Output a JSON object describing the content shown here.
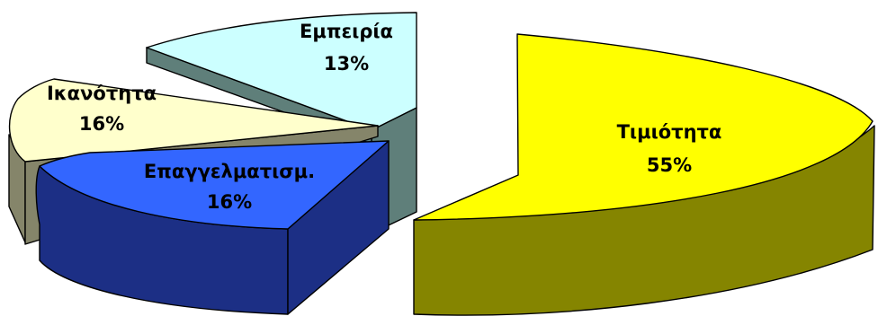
{
  "chart_data": {
    "type": "pie",
    "style": "3d-exploded",
    "title": "",
    "slices": [
      {
        "label": "Τιμιότητα",
        "value": 55,
        "value_label": "55%",
        "color": "#ffff00",
        "side_color": "#858500"
      },
      {
        "label": "Εμπειρία",
        "value": 13,
        "value_label": "13%",
        "color": "#ccffff",
        "side_color": "#5f7f7a"
      },
      {
        "label": "Ικανότητα",
        "value": 16,
        "value_label": "16%",
        "color": "#ffffcc",
        "side_color": "#85856a"
      },
      {
        "label": "Επαγγελματισμ.",
        "value": 16,
        "value_label": "16%",
        "color": "#3366ff",
        "side_color": "#1c2f85"
      }
    ]
  }
}
